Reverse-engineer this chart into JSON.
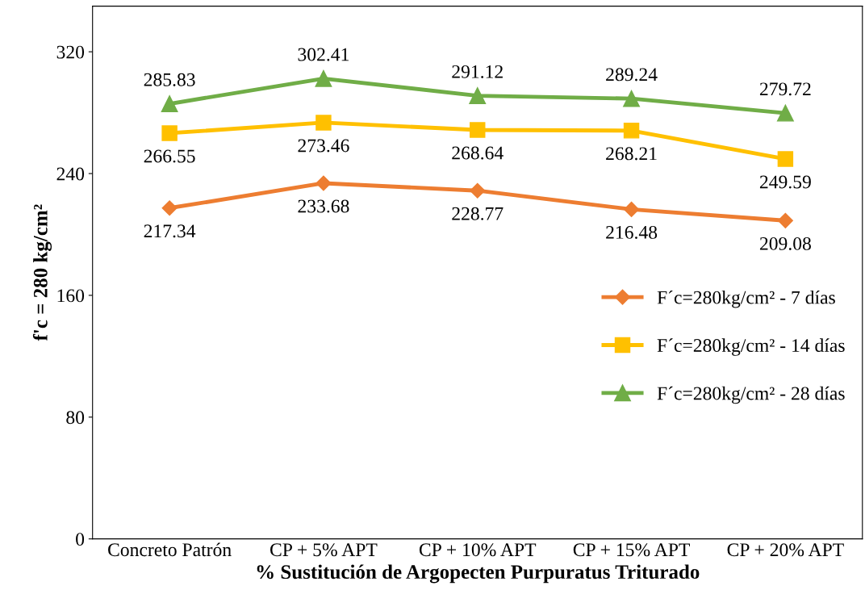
{
  "chart_data": {
    "type": "line",
    "xlabel": "% Sustitución de Argopecten Purpuratus Triturado",
    "ylabel": "f'c = 280 kg/cm²",
    "categories": [
      "Concreto Patrón",
      "CP + 5% APT",
      "CP + 10% APT",
      "CP + 15% APT",
      "CP + 20% APT"
    ],
    "series": [
      {
        "name": "F´c=280kg/cm² - 7 días",
        "color": "#ed7d31",
        "marker": "diamond",
        "values": [
          217.34,
          233.68,
          228.77,
          216.48,
          209.08
        ]
      },
      {
        "name": "F´c=280kg/cm² - 14 días",
        "color": "#ffc000",
        "marker": "square",
        "values": [
          266.55,
          273.46,
          268.64,
          268.21,
          249.59
        ]
      },
      {
        "name": "F´c=280kg/cm² - 28 días",
        "color": "#70ad47",
        "marker": "triangle",
        "values": [
          285.83,
          302.41,
          291.12,
          289.24,
          279.72
        ]
      }
    ],
    "ylim": [
      0,
      350
    ],
    "yticks": [
      0,
      80,
      160,
      240,
      320
    ],
    "grid": false,
    "legend": "center right",
    "data_labels": true,
    "line_style": "solid"
  }
}
